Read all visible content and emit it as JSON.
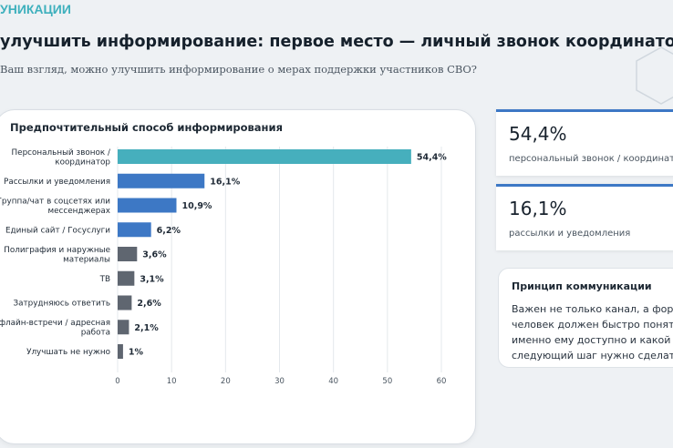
{
  "header": {
    "section": "УНИКАЦИИ",
    "title": "улучшить информирование: первое место — личный звонок координатора",
    "subtitle": "Ваш взгляд, можно улучшить информирование о мерах поддержки участников СВО?"
  },
  "stats": [
    {
      "value": "54,4%",
      "label": "персональный звонок / координатор"
    },
    {
      "value": "16,1%",
      "label": "рассылки и уведомления"
    }
  ],
  "principle": {
    "title": "Принцип коммуникации",
    "lines": [
      "Важен не только канал, а форма",
      "человек должен быстро понять,",
      "именно ему доступно и какой",
      "следующий шаг нужно сделать."
    ]
  },
  "colors": {
    "accent": "#46afbd",
    "blue": "#3d78c5",
    "gray": "#5f6670",
    "card_border": "#3d78c5"
  },
  "chart_data": {
    "type": "bar",
    "orientation": "horizontal",
    "title": "Предпочтительный способ информирования",
    "categories": [
      [
        "Персональный звонок /",
        "координатор"
      ],
      [
        "Рассылки и уведомления"
      ],
      [
        "Группа/чат в соцсетях или",
        "мессенджерах"
      ],
      [
        "Единый сайт / Госуслуги"
      ],
      [
        "Полиграфия и наружные",
        "материалы"
      ],
      [
        "ТВ"
      ],
      [
        "Затрудняюсь ответить"
      ],
      [
        "Офлайн-встречи / адресная",
        "работа"
      ],
      [
        "Улучшать не нужно"
      ]
    ],
    "values": [
      54.4,
      16.1,
      10.9,
      6.2,
      3.6,
      3.1,
      2.6,
      2.1,
      1.0
    ],
    "value_labels": [
      "54,4%",
      "16,1%",
      "10,9%",
      "6,2%",
      "3,6%",
      "3,1%",
      "2,6%",
      "2,1%",
      "1%"
    ],
    "bar_colors": [
      "#46afbd",
      "#3d78c5",
      "#3d78c5",
      "#3d78c5",
      "#5f6670",
      "#5f6670",
      "#5f6670",
      "#5f6670",
      "#5f6670"
    ],
    "xlim": [
      0,
      60
    ],
    "xticks": [
      0,
      10,
      20,
      30,
      40,
      50,
      60
    ],
    "grid": true,
    "legend": "none"
  }
}
